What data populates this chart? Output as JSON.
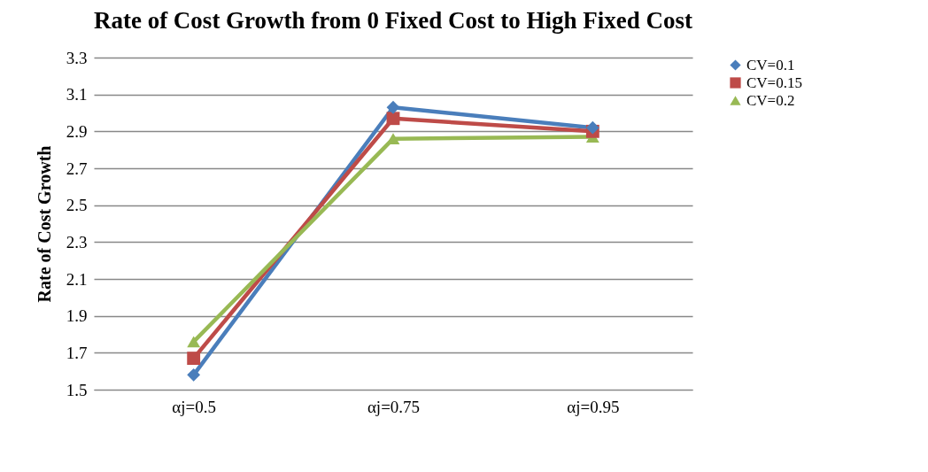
{
  "chart_data": {
    "type": "line",
    "title": "Rate of Cost Growth from 0 Fixed Cost to High Fixed Cost",
    "ylabel": "Rate of Cost Growth",
    "categories": [
      "αj=0.5",
      "αj=0.75",
      "αj=0.95"
    ],
    "series": [
      {
        "name": "CV=0.1",
        "color": "#4a7ebb",
        "marker": "diamond",
        "values": [
          1.58,
          3.03,
          2.92
        ]
      },
      {
        "name": "CV=0.15",
        "color": "#be4b48",
        "marker": "square",
        "values": [
          1.67,
          2.97,
          2.9
        ]
      },
      {
        "name": "CV=0.2",
        "color": "#98b954",
        "marker": "triangle",
        "values": [
          1.76,
          2.86,
          2.87
        ]
      }
    ],
    "ylim": [
      1.5,
      3.3
    ],
    "yticks": [
      1.5,
      1.7,
      1.9,
      2.1,
      2.3,
      2.5,
      2.7,
      2.9,
      3.1,
      3.3
    ],
    "grid": "y",
    "legend": "right"
  }
}
